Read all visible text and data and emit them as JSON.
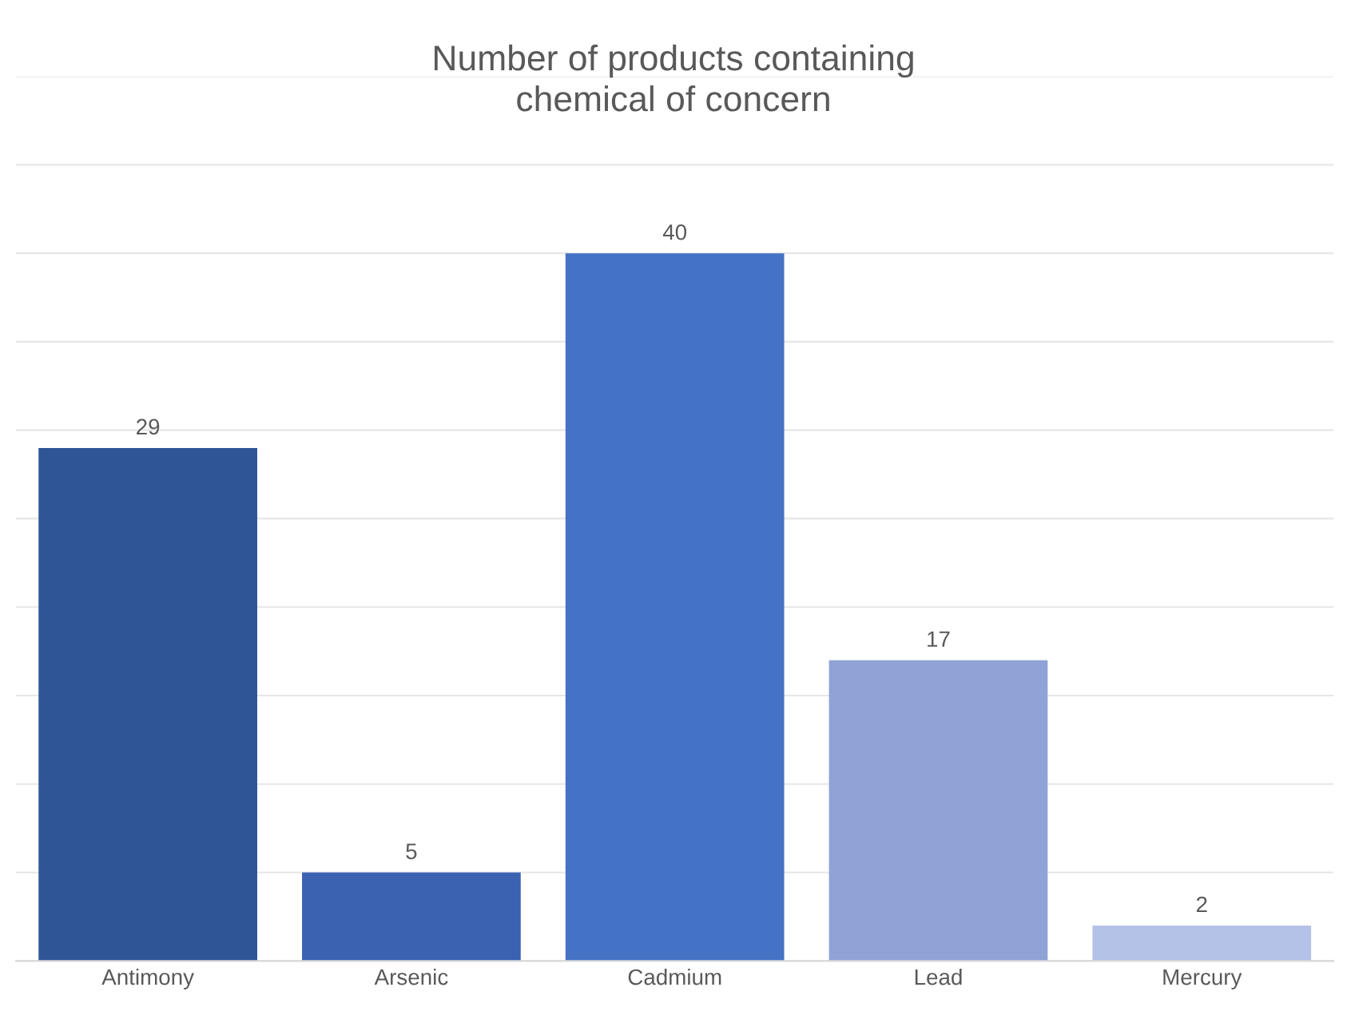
{
  "chart_data": {
    "type": "bar",
    "title": "Number of products containing\nchemical of concern",
    "categories": [
      "Antimony",
      "Arsenic",
      "Cadmium",
      "Lead",
      "Mercury"
    ],
    "values": [
      29,
      5,
      40,
      17,
      2
    ],
    "colors": [
      "#2f5597",
      "#3a62b0",
      "#4472c4",
      "#8fa3d6",
      "#b4c2e8"
    ],
    "ylim": [
      0,
      50
    ],
    "yticks": [
      {
        "value": 0,
        "label": null
      },
      {
        "value": 5,
        "label": null
      },
      {
        "value": 10,
        "label": null
      },
      {
        "value": 15,
        "label": null
      },
      {
        "value": 20,
        "label": null
      },
      {
        "value": 25,
        "label": null
      },
      {
        "value": 30,
        "label": null
      },
      {
        "value": 35,
        "label": null
      },
      {
        "value": 40,
        "label": null
      },
      {
        "value": 45,
        "label": null
      },
      {
        "value": 50,
        "label": null
      }
    ],
    "grid": "y",
    "tick_labels": "x",
    "data_labels": true
  }
}
